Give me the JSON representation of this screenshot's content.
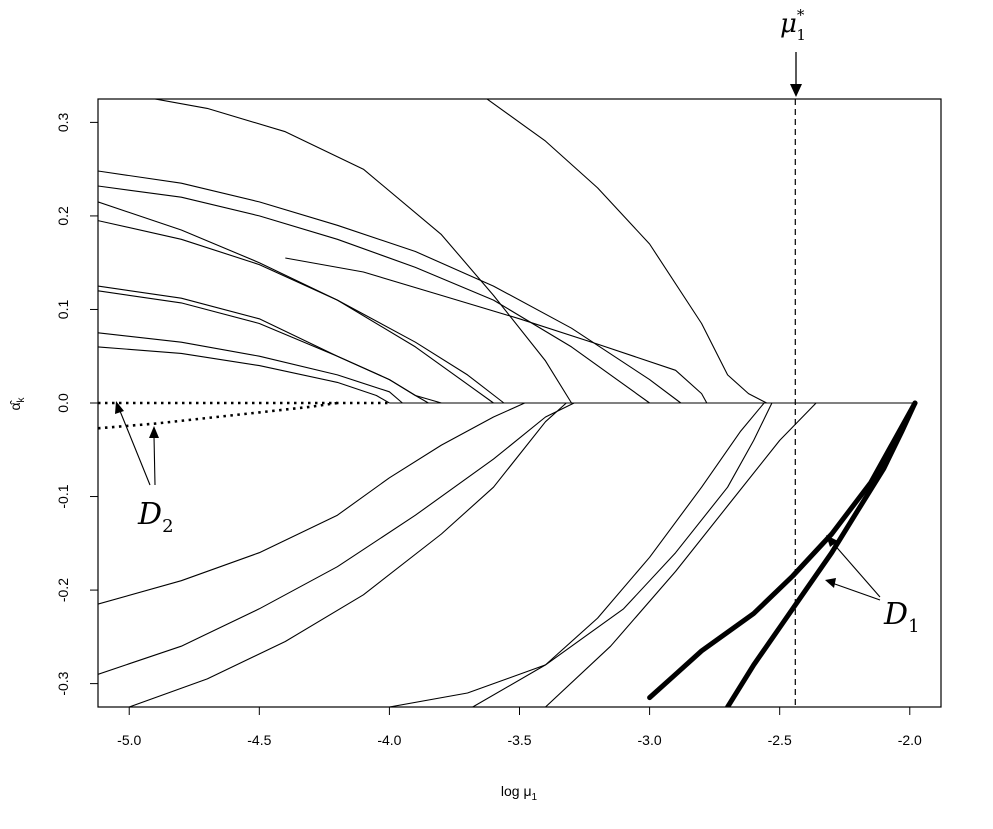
{
  "chart_data": {
    "type": "line",
    "title": "",
    "xlabel_main": "log μ",
    "xlabel_sub": "1",
    "ylabel_main": "α̂",
    "ylabel_sub": "k",
    "xlim": [
      -5.12,
      -1.88
    ],
    "ylim": [
      -0.325,
      0.325
    ],
    "grid": false,
    "legend": "none",
    "x_ticks": [
      -5.0,
      -4.5,
      -4.0,
      -3.5,
      -3.0,
      -2.5,
      -2.0
    ],
    "x_tick_labels": [
      "-5.0",
      "-4.5",
      "-4.0",
      "-3.5",
      "-3.0",
      "-2.5",
      "-2.0"
    ],
    "y_ticks": [
      -0.3,
      -0.2,
      -0.1,
      0.0,
      0.1,
      0.2,
      0.3
    ],
    "y_tick_labels": [
      "-0.3",
      "-0.2",
      "-0.1",
      "0.0",
      "0.1",
      "0.2",
      "0.3"
    ],
    "vline": {
      "x": -2.44,
      "label_main": "μ",
      "label_sup": "*",
      "label_sub": "1"
    },
    "annotations": [
      {
        "id": "D1",
        "main": "D",
        "sub": "1"
      },
      {
        "id": "D2",
        "main": "D",
        "sub": "2"
      }
    ],
    "baseline": {
      "y": 0.0,
      "x_range": [
        -4.0,
        -1.97
      ]
    },
    "series": [
      {
        "style": "thin",
        "x": [
          -5.12,
          -4.8,
          -4.5,
          -4.2,
          -4.0,
          -3.9,
          -3.85
        ],
        "y": [
          0.125,
          0.112,
          0.09,
          0.05,
          0.025,
          0.008,
          0.0
        ]
      },
      {
        "style": "thin",
        "x": [
          -5.12,
          -4.8,
          -4.5,
          -4.2,
          -4.0,
          -3.9,
          -3.8
        ],
        "y": [
          0.12,
          0.107,
          0.085,
          0.05,
          0.025,
          0.008,
          0.0
        ]
      },
      {
        "style": "thin",
        "x": [
          -5.12,
          -4.8,
          -4.5,
          -4.2,
          -4.0,
          -3.95
        ],
        "y": [
          0.075,
          0.065,
          0.05,
          0.03,
          0.012,
          0.0
        ]
      },
      {
        "style": "thin",
        "x": [
          -5.12,
          -4.8,
          -4.5,
          -4.2,
          -4.05,
          -4.0
        ],
        "y": [
          0.06,
          0.053,
          0.04,
          0.022,
          0.008,
          0.0
        ]
      },
      {
        "style": "thin",
        "x": [
          -5.12,
          -4.8,
          -4.5,
          -4.2,
          -3.9,
          -3.7,
          -3.6
        ],
        "y": [
          0.195,
          0.175,
          0.148,
          0.11,
          0.06,
          0.02,
          0.0
        ]
      },
      {
        "style": "thin",
        "x": [
          -5.12,
          -4.8,
          -4.5,
          -4.2,
          -3.9,
          -3.7,
          -3.56
        ],
        "y": [
          0.215,
          0.185,
          0.15,
          0.11,
          0.065,
          0.03,
          0.0
        ]
      },
      {
        "style": "thin",
        "x": [
          -5.12,
          -4.8,
          -4.5,
          -4.2,
          -3.9,
          -3.6,
          -3.3,
          -3.0
        ],
        "y": [
          0.232,
          0.22,
          0.2,
          0.175,
          0.145,
          0.11,
          0.06,
          0.0
        ]
      },
      {
        "style": "thin",
        "x": [
          -5.12,
          -4.8,
          -4.5,
          -4.2,
          -3.9,
          -3.6,
          -3.3,
          -3.0,
          -2.88
        ],
        "y": [
          0.248,
          0.235,
          0.215,
          0.19,
          0.162,
          0.125,
          0.08,
          0.025,
          0.0
        ]
      },
      {
        "style": "thin",
        "x": [
          -5.0,
          -4.7,
          -4.4,
          -4.1,
          -3.8,
          -3.6,
          -3.4,
          -3.3
        ],
        "y": [
          0.33,
          0.315,
          0.29,
          0.25,
          0.18,
          0.115,
          0.045,
          0.0
        ]
      },
      {
        "style": "thin",
        "x": [
          -4.4,
          -4.1,
          -3.8,
          -3.5,
          -3.2,
          -2.9,
          -2.8,
          -2.78
        ],
        "y": [
          0.155,
          0.14,
          0.115,
          0.09,
          0.063,
          0.035,
          0.01,
          0.0
        ]
      },
      {
        "style": "thin",
        "x": [
          -3.65,
          -3.4,
          -3.2,
          -3.0,
          -2.8,
          -2.7,
          -2.62,
          -2.55
        ],
        "y": [
          0.33,
          0.28,
          0.23,
          0.17,
          0.085,
          0.03,
          0.01,
          0.0
        ]
      },
      {
        "style": "thin",
        "x": [
          -5.12,
          -4.8,
          -4.5,
          -4.2,
          -4.0,
          -3.8,
          -3.6,
          -3.48
        ],
        "y": [
          -0.215,
          -0.19,
          -0.16,
          -0.12,
          -0.08,
          -0.045,
          -0.015,
          0.0
        ]
      },
      {
        "style": "thin",
        "x": [
          -5.12,
          -4.8,
          -4.5,
          -4.2,
          -3.9,
          -3.6,
          -3.4,
          -3.29
        ],
        "y": [
          -0.29,
          -0.26,
          -0.22,
          -0.175,
          -0.12,
          -0.06,
          -0.015,
          0.0
        ]
      },
      {
        "style": "thin",
        "x": [
          -5.0,
          -4.7,
          -4.4,
          -4.1,
          -3.8,
          -3.6,
          -3.4,
          -3.32
        ],
        "y": [
          -0.325,
          -0.295,
          -0.255,
          -0.205,
          -0.14,
          -0.09,
          -0.02,
          0.0
        ]
      },
      {
        "style": "thin",
        "x": [
          -4.0,
          -3.7,
          -3.4,
          -3.1,
          -2.9,
          -2.7,
          -2.6,
          -2.53
        ],
        "y": [
          -0.325,
          -0.31,
          -0.28,
          -0.22,
          -0.16,
          -0.09,
          -0.04,
          0.0
        ]
      },
      {
        "style": "thin",
        "x": [
          -3.68,
          -3.4,
          -3.2,
          -3.0,
          -2.8,
          -2.65,
          -2.56
        ],
        "y": [
          -0.325,
          -0.28,
          -0.23,
          -0.165,
          -0.09,
          -0.03,
          0.0
        ]
      },
      {
        "style": "thin",
        "x": [
          -3.4,
          -3.15,
          -2.9,
          -2.7,
          -2.5,
          -2.36
        ],
        "y": [
          -0.325,
          -0.26,
          -0.18,
          -0.11,
          -0.04,
          0.0
        ]
      },
      {
        "style": "thick",
        "x": [
          -3.0,
          -2.9,
          -2.8,
          -2.6,
          -2.45,
          -2.3,
          -2.15,
          -2.05,
          -1.98
        ],
        "y": [
          -0.315,
          -0.29,
          -0.265,
          -0.225,
          -0.185,
          -0.14,
          -0.085,
          -0.035,
          0.0
        ]
      },
      {
        "style": "thick",
        "x": [
          -2.7,
          -2.6,
          -2.5,
          -2.4,
          -2.3,
          -2.2,
          -2.1,
          -2.03,
          -1.98
        ],
        "y": [
          -0.325,
          -0.28,
          -0.24,
          -0.2,
          -0.16,
          -0.115,
          -0.07,
          -0.03,
          0.0
        ]
      },
      {
        "style": "dotted",
        "x": [
          -5.12,
          -4.8,
          -4.5,
          -4.2,
          -4.0
        ],
        "y": [
          0.0,
          0.0,
          0.0,
          0.0,
          0.0
        ]
      },
      {
        "style": "dotted",
        "x": [
          -5.12,
          -4.9,
          -4.7,
          -4.5,
          -4.3,
          -4.2
        ],
        "y": [
          -0.027,
          -0.022,
          -0.016,
          -0.01,
          -0.004,
          0.0
        ]
      }
    ]
  }
}
